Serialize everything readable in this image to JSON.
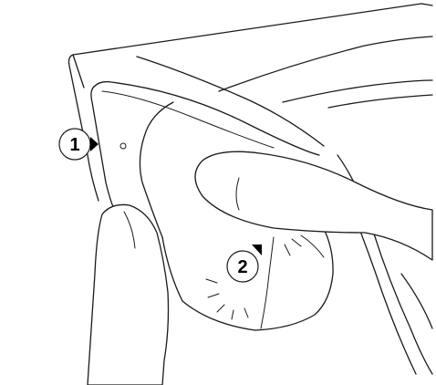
{
  "callouts": [
    {
      "label": "1"
    },
    {
      "label": "2"
    }
  ],
  "colors": {
    "line": "#1a1a1a",
    "background": "#ffffff",
    "pointer": "#000000"
  }
}
